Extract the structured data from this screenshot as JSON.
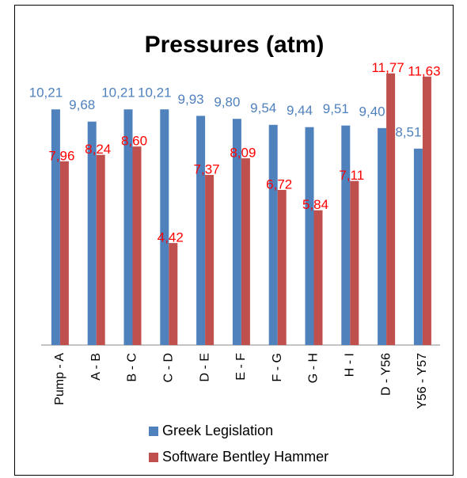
{
  "chart_data": {
    "type": "bar",
    "title": "Pressures (atm)",
    "categories": [
      "Pump - A",
      "A - B",
      "B - C",
      "C - D",
      "D - E",
      "E - F",
      "F - G",
      "G - H",
      "H - I",
      "D - Y56",
      "Y56 - Y57"
    ],
    "series": [
      {
        "name": "Greek Legislation",
        "color": "#4f81bd",
        "label_color": "#4f81bd",
        "values": [
          10.21,
          9.68,
          10.21,
          10.21,
          9.93,
          9.8,
          9.54,
          9.44,
          9.51,
          9.4,
          8.51
        ],
        "value_labels": [
          "10,21",
          "9,68",
          "10,21",
          "10,21",
          "9,93",
          "9,80",
          "9,54",
          "9,44",
          "9,51",
          "9,40",
          "8,51"
        ]
      },
      {
        "name": "Software Bentley Hammer",
        "color": "#c0504d",
        "label_color": "#ff0000",
        "values": [
          7.96,
          8.24,
          8.6,
          4.42,
          7.37,
          8.09,
          6.72,
          5.84,
          7.11,
          11.77,
          11.63
        ],
        "value_labels": [
          "7,96",
          "8,24",
          "8,60",
          "4,42",
          "7,37",
          "8,09",
          "6,72",
          "5,84",
          "7,11",
          "11,77",
          "11,63"
        ]
      }
    ],
    "ylim": [
      0,
      12
    ],
    "legend": "bottom"
  }
}
